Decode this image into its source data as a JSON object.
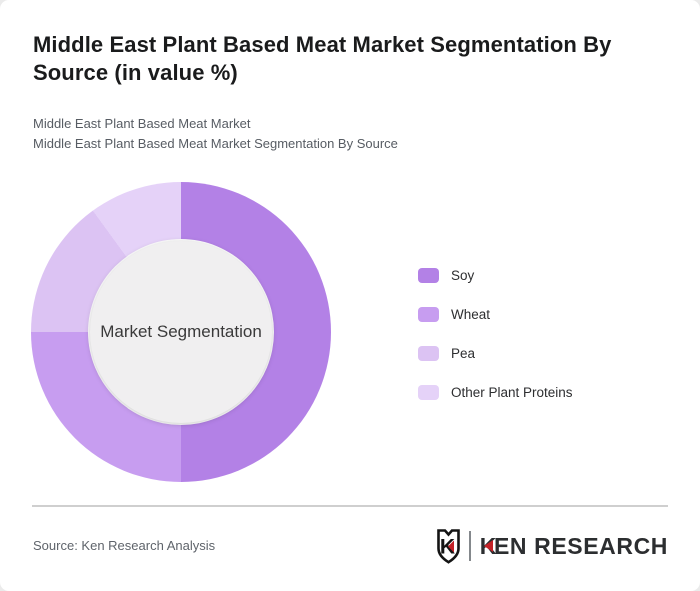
{
  "header": {
    "title": "Middle East Plant Based Meat Market Segmentation By Source (in value %)",
    "subtitle_line1": "Middle East Plant Based Meat Market",
    "subtitle_line2": "Middle East Plant Based Meat Market Segmentation By Source"
  },
  "chart_data": {
    "type": "pie",
    "variant": "donut",
    "title": "Middle East Plant Based Meat Market Segmentation By Source (in value %)",
    "center_label": "Market Segmentation",
    "categories": [
      "Soy",
      "Wheat",
      "Pea",
      "Other Plant Proteins"
    ],
    "values": [
      50,
      25,
      15,
      10
    ],
    "unit": "percent of market value",
    "colors": [
      "#b381e6",
      "#c79df0",
      "#dcc3f3",
      "#e5d2f8"
    ],
    "start_angle_deg": 0,
    "direction": "clockwise",
    "legend_position": "right",
    "inner_hole_color": "#f0eff0"
  },
  "footer": {
    "source": "Source: Ken Research Analysis",
    "logo": {
      "emblem_letter": "K",
      "wordmark": "KEN RESEARCH",
      "wordmark_first": "K",
      "wordmark_rest": "EN RESEARCH",
      "accent_color": "#c42127"
    }
  }
}
